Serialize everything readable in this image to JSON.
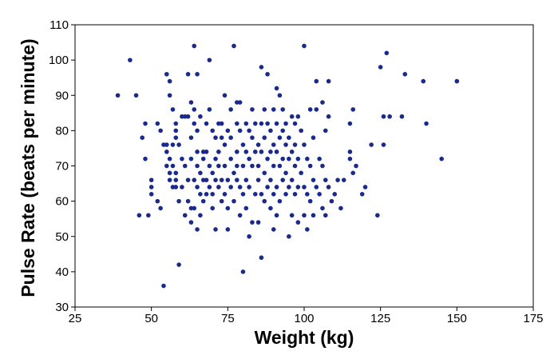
{
  "chart_data": {
    "type": "scatter",
    "title": "",
    "xlabel": "Weight (kg)",
    "ylabel": "Pulse Rate (beats per minute)",
    "xlim": [
      25,
      175
    ],
    "ylim": [
      30,
      110
    ],
    "xticks": [
      25,
      50,
      75,
      100,
      125,
      150,
      175
    ],
    "yticks": [
      30,
      40,
      50,
      60,
      70,
      80,
      90,
      100,
      110
    ],
    "grid": false,
    "legend": "none",
    "marker_color": "#1a2a8c",
    "points": [
      [
        39,
        90
      ],
      [
        43,
        100
      ],
      [
        45,
        90
      ],
      [
        46,
        56
      ],
      [
        47,
        78
      ],
      [
        48,
        82
      ],
      [
        48,
        72
      ],
      [
        49,
        56
      ],
      [
        50,
        66
      ],
      [
        50,
        64
      ],
      [
        50,
        62
      ],
      [
        52,
        82
      ],
      [
        52,
        60
      ],
      [
        53,
        80
      ],
      [
        53,
        58
      ],
      [
        54,
        76
      ],
      [
        54,
        36
      ],
      [
        55,
        76
      ],
      [
        55,
        74
      ],
      [
        55,
        70
      ],
      [
        55,
        96
      ],
      [
        56,
        94
      ],
      [
        56,
        90
      ],
      [
        56,
        72
      ],
      [
        56,
        68
      ],
      [
        56,
        66
      ],
      [
        57,
        86
      ],
      [
        57,
        76
      ],
      [
        57,
        70
      ],
      [
        57,
        64
      ],
      [
        58,
        82
      ],
      [
        58,
        80
      ],
      [
        58,
        78
      ],
      [
        58,
        68
      ],
      [
        58,
        66
      ],
      [
        58,
        64
      ],
      [
        59,
        76
      ],
      [
        59,
        60
      ],
      [
        59,
        42
      ],
      [
        60,
        84
      ],
      [
        60,
        72
      ],
      [
        60,
        64
      ],
      [
        61,
        84
      ],
      [
        61,
        70
      ],
      [
        61,
        56
      ],
      [
        62,
        96
      ],
      [
        62,
        84
      ],
      [
        62,
        66
      ],
      [
        62,
        60
      ],
      [
        63,
        88
      ],
      [
        63,
        78
      ],
      [
        63,
        72
      ],
      [
        63,
        58
      ],
      [
        63,
        54
      ],
      [
        64,
        104
      ],
      [
        64,
        86
      ],
      [
        64,
        82
      ],
      [
        64,
        66
      ],
      [
        64,
        58
      ],
      [
        65,
        96
      ],
      [
        65,
        80
      ],
      [
        65,
        74
      ],
      [
        65,
        70
      ],
      [
        65,
        64
      ],
      [
        65,
        52
      ],
      [
        66,
        84
      ],
      [
        66,
        68
      ],
      [
        66,
        62
      ],
      [
        66,
        56
      ],
      [
        67,
        74
      ],
      [
        67,
        72
      ],
      [
        67,
        66
      ],
      [
        67,
        60
      ],
      [
        68,
        82
      ],
      [
        68,
        74
      ],
      [
        68,
        66
      ],
      [
        68,
        62
      ],
      [
        69,
        100
      ],
      [
        69,
        86
      ],
      [
        69,
        70
      ],
      [
        69,
        64
      ],
      [
        70,
        80
      ],
      [
        70,
        68
      ],
      [
        70,
        62
      ],
      [
        70,
        58
      ],
      [
        71,
        78
      ],
      [
        71,
        72
      ],
      [
        71,
        66
      ],
      [
        71,
        52
      ],
      [
        72,
        82
      ],
      [
        72,
        74
      ],
      [
        72,
        70
      ],
      [
        72,
        64
      ],
      [
        73,
        82
      ],
      [
        73,
        78
      ],
      [
        73,
        66
      ],
      [
        73,
        60
      ],
      [
        74,
        90
      ],
      [
        74,
        76
      ],
      [
        74,
        70
      ],
      [
        74,
        62
      ],
      [
        75,
        80
      ],
      [
        75,
        66
      ],
      [
        75,
        58
      ],
      [
        75,
        52
      ],
      [
        76,
        86
      ],
      [
        76,
        78
      ],
      [
        76,
        72
      ],
      [
        76,
        64
      ],
      [
        77,
        104
      ],
      [
        77,
        68
      ],
      [
        77,
        60
      ],
      [
        78,
        88
      ],
      [
        78,
        82
      ],
      [
        78,
        74
      ],
      [
        78,
        70
      ],
      [
        78,
        66
      ],
      [
        79,
        88
      ],
      [
        79,
        80
      ],
      [
        79,
        64
      ],
      [
        79,
        56
      ],
      [
        80,
        76
      ],
      [
        80,
        70
      ],
      [
        80,
        62
      ],
      [
        80,
        40
      ],
      [
        81,
        82
      ],
      [
        81,
        74
      ],
      [
        81,
        66
      ],
      [
        81,
        58
      ],
      [
        82,
        80
      ],
      [
        82,
        72
      ],
      [
        82,
        64
      ],
      [
        82,
        50
      ],
      [
        83,
        86
      ],
      [
        83,
        78
      ],
      [
        83,
        70
      ],
      [
        83,
        54
      ],
      [
        84,
        82
      ],
      [
        84,
        74
      ],
      [
        84,
        62
      ],
      [
        85,
        76
      ],
      [
        85,
        70
      ],
      [
        85,
        66
      ],
      [
        85,
        54
      ],
      [
        86,
        98
      ],
      [
        86,
        82
      ],
      [
        86,
        74
      ],
      [
        86,
        62
      ],
      [
        86,
        44
      ],
      [
        87,
        86
      ],
      [
        87,
        78
      ],
      [
        87,
        68
      ],
      [
        87,
        60
      ],
      [
        88,
        96
      ],
      [
        88,
        82
      ],
      [
        88,
        72
      ],
      [
        88,
        64
      ],
      [
        89,
        80
      ],
      [
        89,
        74
      ],
      [
        89,
        66
      ],
      [
        89,
        58
      ],
      [
        90,
        86
      ],
      [
        90,
        76
      ],
      [
        90,
        70
      ],
      [
        90,
        62
      ],
      [
        90,
        52
      ],
      [
        91,
        92
      ],
      [
        91,
        82
      ],
      [
        91,
        74
      ],
      [
        91,
        64
      ],
      [
        91,
        56
      ],
      [
        92,
        90
      ],
      [
        92,
        78
      ],
      [
        92,
        70
      ],
      [
        92,
        60
      ],
      [
        93,
        86
      ],
      [
        93,
        80
      ],
      [
        93,
        72
      ],
      [
        93,
        66
      ],
      [
        94,
        82
      ],
      [
        94,
        76
      ],
      [
        94,
        68
      ],
      [
        94,
        62
      ],
      [
        95,
        78
      ],
      [
        95,
        72
      ],
      [
        95,
        64
      ],
      [
        95,
        50
      ],
      [
        96,
        84
      ],
      [
        96,
        74
      ],
      [
        96,
        66
      ],
      [
        96,
        56
      ],
      [
        97,
        82
      ],
      [
        97,
        76
      ],
      [
        97,
        70
      ],
      [
        97,
        62
      ],
      [
        98,
        84
      ],
      [
        98,
        72
      ],
      [
        98,
        64
      ],
      [
        98,
        54
      ],
      [
        99,
        80
      ],
      [
        99,
        68
      ],
      [
        100,
        104
      ],
      [
        100,
        76
      ],
      [
        100,
        64
      ],
      [
        100,
        56
      ],
      [
        101,
        72
      ],
      [
        101,
        62
      ],
      [
        101,
        52
      ],
      [
        102,
        86
      ],
      [
        102,
        70
      ],
      [
        102,
        60
      ],
      [
        103,
        78
      ],
      [
        103,
        66
      ],
      [
        103,
        56
      ],
      [
        104,
        94
      ],
      [
        104,
        86
      ],
      [
        104,
        64
      ],
      [
        105,
        72
      ],
      [
        105,
        62
      ],
      [
        106,
        88
      ],
      [
        106,
        70
      ],
      [
        106,
        58
      ],
      [
        107,
        80
      ],
      [
        107,
        66
      ],
      [
        107,
        56
      ],
      [
        108,
        94
      ],
      [
        108,
        84
      ],
      [
        108,
        64
      ],
      [
        109,
        60
      ],
      [
        110,
        62
      ],
      [
        111,
        66
      ],
      [
        112,
        58
      ],
      [
        113,
        66
      ],
      [
        115,
        74
      ],
      [
        115,
        72
      ],
      [
        115,
        82
      ],
      [
        116,
        86
      ],
      [
        116,
        68
      ],
      [
        117,
        70
      ],
      [
        119,
        62
      ],
      [
        120,
        64
      ],
      [
        122,
        76
      ],
      [
        124,
        56
      ],
      [
        125,
        98
      ],
      [
        126,
        84
      ],
      [
        126,
        76
      ],
      [
        127,
        102
      ],
      [
        128,
        84
      ],
      [
        132,
        84
      ],
      [
        133,
        96
      ],
      [
        139,
        94
      ],
      [
        140,
        82
      ],
      [
        145,
        72
      ],
      [
        150,
        94
      ]
    ]
  }
}
